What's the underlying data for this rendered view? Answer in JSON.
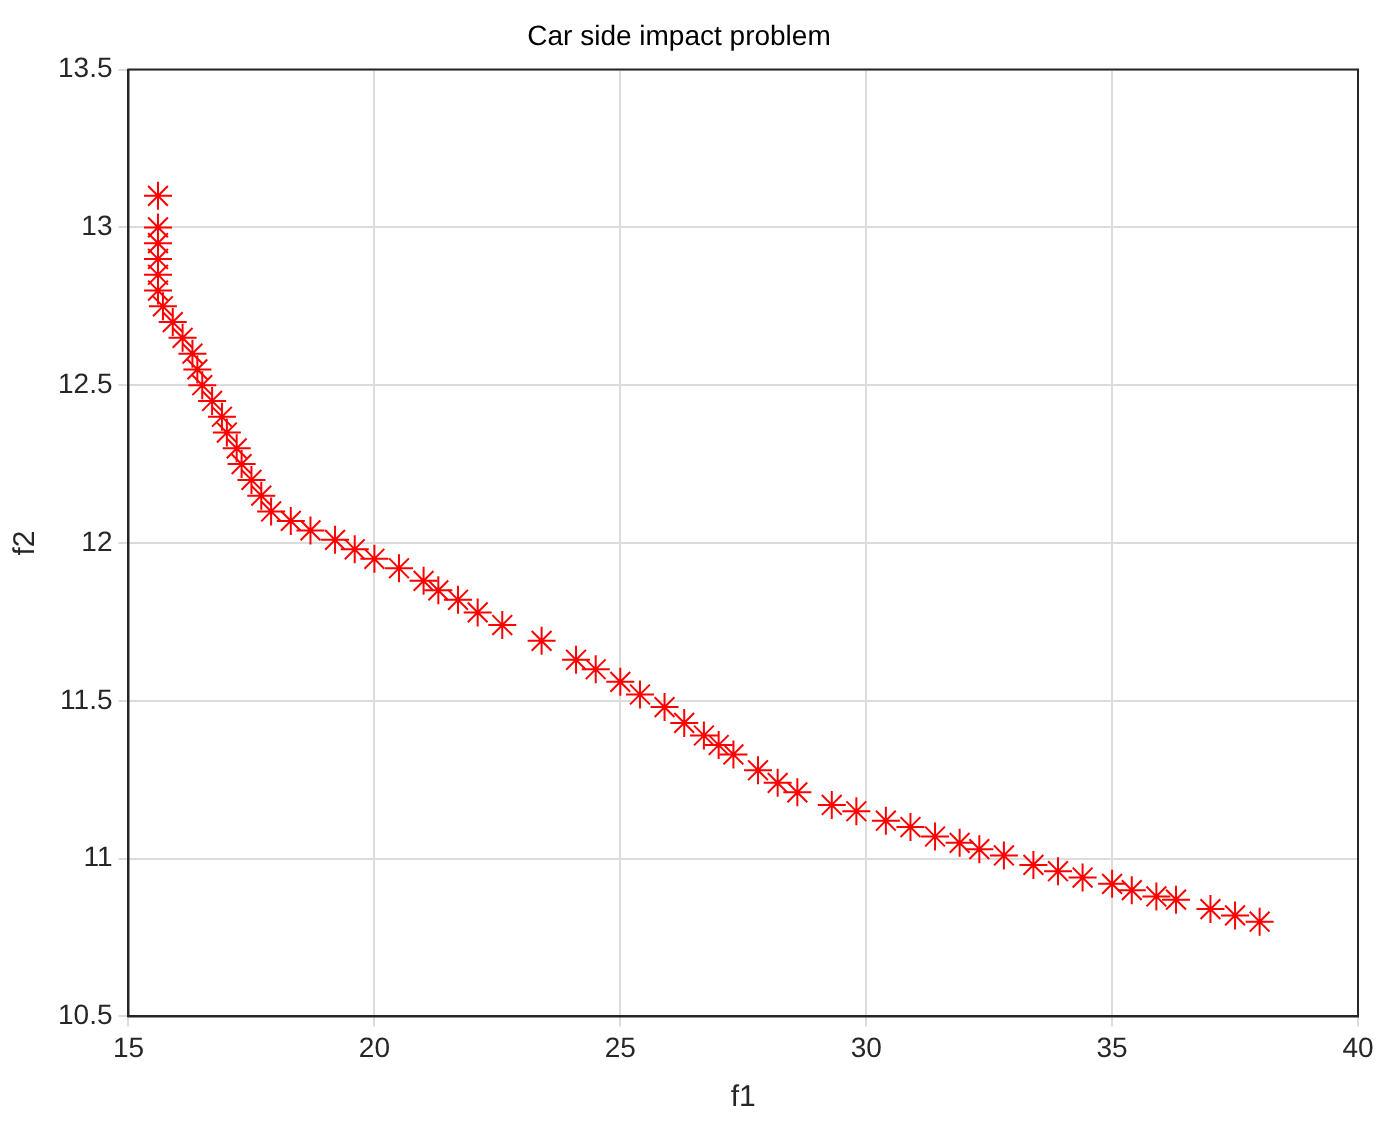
{
  "chart_data": {
    "type": "scatter",
    "title": "Car side impact problem",
    "xlabel": "f1",
    "ylabel": "f2",
    "marker": "cross",
    "grid": true,
    "legend": false,
    "xlim": [
      15,
      40
    ],
    "xticks": [
      15,
      20,
      25,
      30,
      35,
      40
    ],
    "ylim": [
      10.5,
      13.5
    ],
    "yticks": [
      10.5,
      11,
      11.5,
      12,
      12.5,
      13,
      13.5
    ],
    "series": [
      {
        "color": "#ff0000",
        "x": [
          15.6,
          15.6,
          15.6,
          15.6,
          15.6,
          15.6,
          15.7,
          15.9,
          16.1,
          16.3,
          16.4,
          16.5,
          16.7,
          16.9,
          17.0,
          17.2,
          17.3,
          17.5,
          17.7,
          17.9,
          18.3,
          18.7,
          19.2,
          19.6,
          20.0,
          20.5,
          21.0,
          21.3,
          21.7,
          22.1,
          22.6,
          23.4,
          24.1,
          24.5,
          25.0,
          25.4,
          25.9,
          26.3,
          26.7,
          27.0,
          27.3,
          27.8,
          28.2,
          28.6,
          29.3,
          29.8,
          30.4,
          30.9,
          31.4,
          31.9,
          32.3,
          32.8,
          33.4,
          33.9,
          34.4,
          35.0,
          35.4,
          35.9,
          36.3,
          37.0,
          37.5,
          38.0
        ],
        "values": [
          13.1,
          13.0,
          12.95,
          12.9,
          12.85,
          12.8,
          12.75,
          12.7,
          12.65,
          12.6,
          12.55,
          12.5,
          12.45,
          12.4,
          12.35,
          12.3,
          12.25,
          12.2,
          12.15,
          12.1,
          12.07,
          12.04,
          12.01,
          11.98,
          11.95,
          11.92,
          11.88,
          11.85,
          11.82,
          11.78,
          11.74,
          11.69,
          11.63,
          11.6,
          11.56,
          11.52,
          11.48,
          11.43,
          11.39,
          11.36,
          11.33,
          11.28,
          11.24,
          11.21,
          11.17,
          11.15,
          11.12,
          11.1,
          11.07,
          11.05,
          11.03,
          11.01,
          10.98,
          10.96,
          10.94,
          10.92,
          10.9,
          10.88,
          10.87,
          10.84,
          10.82,
          10.8
        ]
      }
    ]
  }
}
